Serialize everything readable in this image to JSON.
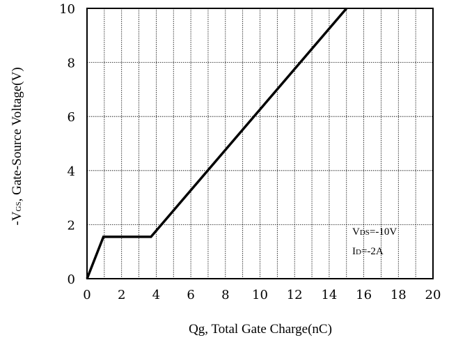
{
  "chart_data": {
    "type": "line",
    "title": "",
    "xlabel": "Qg, Total Gate Charge(nC)",
    "ylabel": {
      "prefix": "-V",
      "sub": "GS",
      "suffix": ", Gate-Source Voltage(V)"
    },
    "xlim": [
      0,
      20
    ],
    "ylim": [
      0,
      10
    ],
    "xticks": [
      "0",
      "2",
      "4",
      "6",
      "8",
      "10",
      "12",
      "14",
      "16",
      "18",
      "20"
    ],
    "yticks": [
      "0",
      "2",
      "4",
      "6",
      "8",
      "10"
    ],
    "x_minor_grid_step": 1,
    "grid": true,
    "series": [
      {
        "x": [
          0,
          0.95,
          3.7,
          15.0
        ],
        "y": [
          0,
          1.55,
          1.55,
          10.0
        ],
        "color": "#000000"
      }
    ],
    "annotations": [
      {
        "main": "V",
        "sub": "DS",
        "rest": "=-10V"
      },
      {
        "main": "I",
        "sub": "D",
        "rest": "=-2A"
      }
    ]
  }
}
